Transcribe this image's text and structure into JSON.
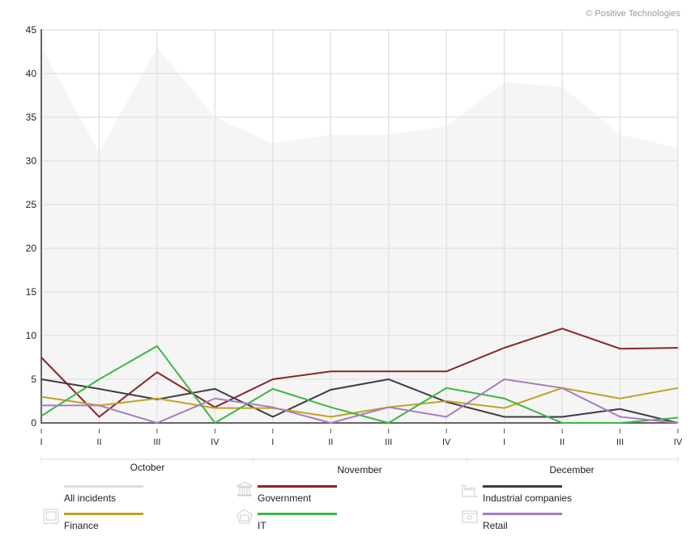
{
  "credit": "© Positive Technologies",
  "chart_data": {
    "type": "line",
    "title": "",
    "xlabel": "",
    "ylabel": "",
    "ylim": [
      0,
      45
    ],
    "yticks": [
      0,
      5,
      10,
      15,
      20,
      25,
      30,
      35,
      40,
      45
    ],
    "grid": true,
    "categories": [
      "I",
      "II",
      "III",
      "IV",
      "I",
      "II",
      "III",
      "IV",
      "I",
      "II",
      "III",
      "IV"
    ],
    "groups": [
      {
        "label": "October",
        "span": [
          0,
          3
        ]
      },
      {
        "label": "November",
        "span": [
          4,
          7
        ]
      },
      {
        "label": "December",
        "span": [
          8,
          11
        ]
      }
    ],
    "legend_position": "bottom",
    "series": [
      {
        "name": "All incidents",
        "style": "area",
        "color": "#f5f5f5",
        "legend_color": "#dddddd",
        "icon": "none",
        "values": [
          43,
          31,
          43,
          35,
          32,
          33,
          33,
          34,
          39,
          38.5,
          33,
          31.5
        ]
      },
      {
        "name": "Government",
        "style": "line",
        "color": "#8b2626",
        "icon": "government-building-icon",
        "values": [
          7.5,
          0.7,
          5.8,
          1.8,
          5,
          5.9,
          5.9,
          5.9,
          8.6,
          10.8,
          8.5,
          8.6
        ]
      },
      {
        "name": "Industrial companies",
        "style": "line",
        "color": "#3f3a45",
        "icon": "factory-icon",
        "values": [
          5,
          3.9,
          2.7,
          3.9,
          0.7,
          3.8,
          5,
          2.4,
          0.7,
          0.7,
          1.6,
          0
        ]
      },
      {
        "name": "Finance",
        "style": "line",
        "color": "#c2a11e",
        "icon": "safe-icon",
        "values": [
          3,
          2,
          2.8,
          1.7,
          1.7,
          0.7,
          1.8,
          2.5,
          1.7,
          4,
          2.8,
          4
        ]
      },
      {
        "name": "IT",
        "style": "line",
        "color": "#3cb843",
        "icon": "network-icon",
        "values": [
          0.8,
          5,
          8.8,
          0,
          3.9,
          1.8,
          0,
          4,
          2.8,
          0,
          0,
          0.6
        ]
      },
      {
        "name": "Retail",
        "style": "line",
        "color": "#a77bc2",
        "icon": "credit-card-icon",
        "values": [
          2,
          2,
          0,
          2.8,
          1.8,
          0,
          1.8,
          0.7,
          5,
          4,
          0.7,
          0
        ]
      }
    ]
  }
}
